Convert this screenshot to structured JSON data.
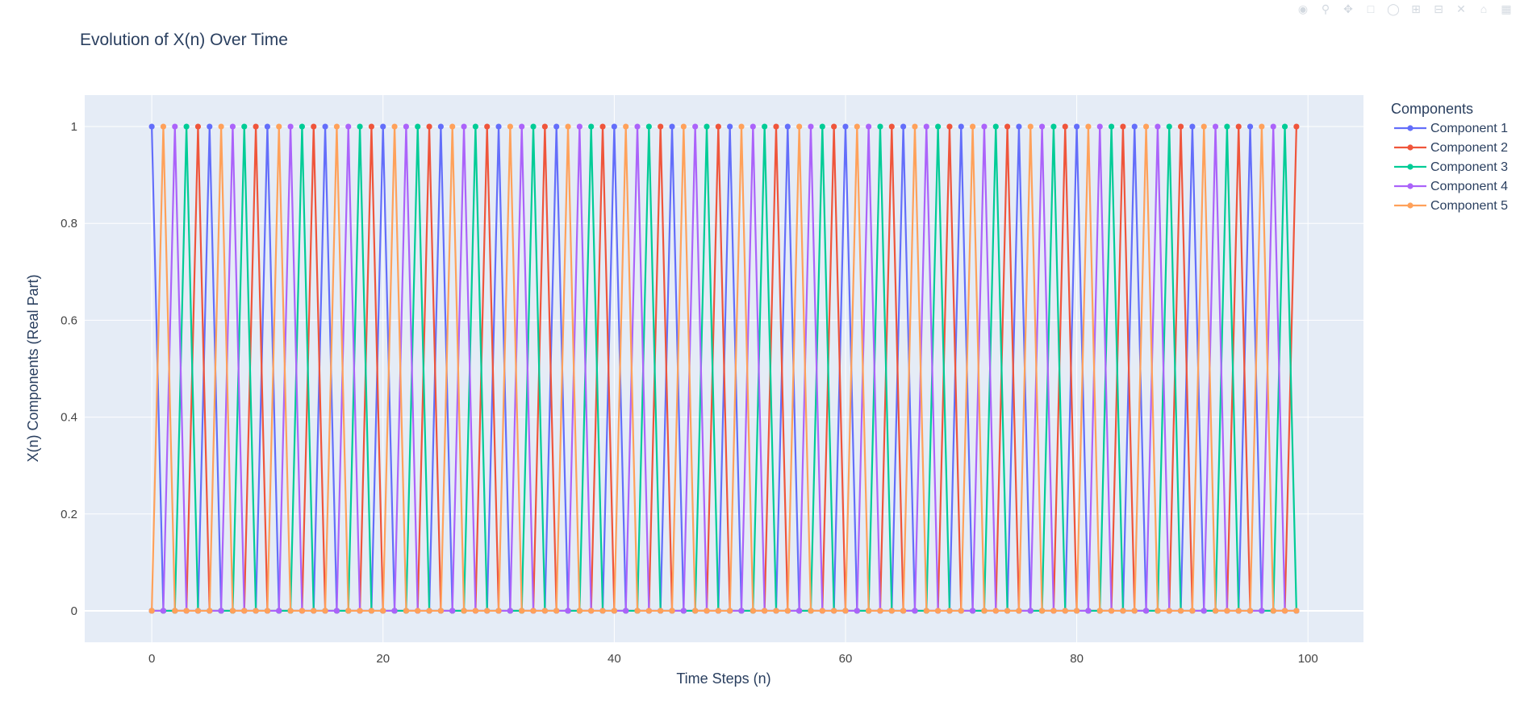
{
  "chart_data": {
    "type": "line",
    "title": "Evolution of X(n) Over Time",
    "xlabel": "Time Steps (n)",
    "ylabel": "X(n) Components (Real Part)",
    "x_range": [
      -5.8,
      104.8
    ],
    "y_range": [
      -0.065,
      1.065
    ],
    "x_ticks": [
      0,
      20,
      40,
      60,
      80,
      100
    ],
    "x_tick_labels": [
      "0",
      "20",
      "40",
      "60",
      "80",
      "100"
    ],
    "y_ticks": [
      0,
      0.2,
      0.4,
      0.6,
      0.8,
      1
    ],
    "y_tick_labels": [
      "0",
      "0.2",
      "0.4",
      "0.6",
      "0.8",
      "1"
    ],
    "grid": true,
    "legend_title": "Components",
    "legend_position": "top-right outside",
    "x": [
      0,
      1,
      2,
      3,
      4,
      5,
      6,
      7,
      8,
      9,
      10,
      11,
      12,
      13,
      14,
      15,
      16,
      17,
      18,
      19,
      20,
      21,
      22,
      23,
      24,
      25,
      26,
      27,
      28,
      29,
      30,
      31,
      32,
      33,
      34,
      35,
      36,
      37,
      38,
      39,
      40,
      41,
      42,
      43,
      44,
      45,
      46,
      47,
      48,
      49,
      50,
      51,
      52,
      53,
      54,
      55,
      56,
      57,
      58,
      59,
      60,
      61,
      62,
      63,
      64,
      65,
      66,
      67,
      68,
      69,
      70,
      71,
      72,
      73,
      74,
      75,
      76,
      77,
      78,
      79,
      80,
      81,
      82,
      83,
      84,
      85,
      86,
      87,
      88,
      89,
      90,
      91,
      92,
      93,
      94,
      95,
      96,
      97,
      98,
      99
    ],
    "series": [
      {
        "name": "Component 1",
        "color": "#636efa",
        "values": [
          1,
          0,
          0,
          0,
          0,
          1,
          0,
          0,
          0,
          0,
          1,
          0,
          0,
          0,
          0,
          1,
          0,
          0,
          0,
          0,
          1,
          0,
          0,
          0,
          0,
          1,
          0,
          0,
          0,
          0,
          1,
          0,
          0,
          0,
          0,
          1,
          0,
          0,
          0,
          0,
          1,
          0,
          0,
          0,
          0,
          1,
          0,
          0,
          0,
          0,
          1,
          0,
          0,
          0,
          0,
          1,
          0,
          0,
          0,
          0,
          1,
          0,
          0,
          0,
          0,
          1,
          0,
          0,
          0,
          0,
          1,
          0,
          0,
          0,
          0,
          1,
          0,
          0,
          0,
          0,
          1,
          0,
          0,
          0,
          0,
          1,
          0,
          0,
          0,
          0,
          1,
          0,
          0,
          0,
          0,
          1,
          0,
          0,
          0,
          0
        ]
      },
      {
        "name": "Component 2",
        "color": "#EF553B",
        "values": [
          0,
          0,
          0,
          0,
          1,
          0,
          0,
          0,
          0,
          1,
          0,
          0,
          0,
          0,
          1,
          0,
          0,
          0,
          0,
          1,
          0,
          0,
          0,
          0,
          1,
          0,
          0,
          0,
          0,
          1,
          0,
          0,
          0,
          0,
          1,
          0,
          0,
          0,
          0,
          1,
          0,
          0,
          0,
          0,
          1,
          0,
          0,
          0,
          0,
          1,
          0,
          0,
          0,
          0,
          1,
          0,
          0,
          0,
          0,
          1,
          0,
          0,
          0,
          0,
          1,
          0,
          0,
          0,
          0,
          1,
          0,
          0,
          0,
          0,
          1,
          0,
          0,
          0,
          0,
          1,
          0,
          0,
          0,
          0,
          1,
          0,
          0,
          0,
          0,
          1,
          0,
          0,
          0,
          0,
          1,
          0,
          0,
          0,
          0,
          1
        ]
      },
      {
        "name": "Component 3",
        "color": "#00cc96",
        "values": [
          0,
          0,
          0,
          1,
          0,
          0,
          0,
          0,
          1,
          0,
          0,
          0,
          0,
          1,
          0,
          0,
          0,
          0,
          1,
          0,
          0,
          0,
          0,
          1,
          0,
          0,
          0,
          0,
          1,
          0,
          0,
          0,
          0,
          1,
          0,
          0,
          0,
          0,
          1,
          0,
          0,
          0,
          0,
          1,
          0,
          0,
          0,
          0,
          1,
          0,
          0,
          0,
          0,
          1,
          0,
          0,
          0,
          0,
          1,
          0,
          0,
          0,
          0,
          1,
          0,
          0,
          0,
          0,
          1,
          0,
          0,
          0,
          0,
          1,
          0,
          0,
          0,
          0,
          1,
          0,
          0,
          0,
          0,
          1,
          0,
          0,
          0,
          0,
          1,
          0,
          0,
          0,
          0,
          1,
          0,
          0,
          0,
          0,
          1,
          0
        ]
      },
      {
        "name": "Component 4",
        "color": "#ab63fa",
        "values": [
          0,
          0,
          1,
          0,
          0,
          0,
          0,
          1,
          0,
          0,
          0,
          0,
          1,
          0,
          0,
          0,
          0,
          1,
          0,
          0,
          0,
          0,
          1,
          0,
          0,
          0,
          0,
          1,
          0,
          0,
          0,
          0,
          1,
          0,
          0,
          0,
          0,
          1,
          0,
          0,
          0,
          0,
          1,
          0,
          0,
          0,
          0,
          1,
          0,
          0,
          0,
          0,
          1,
          0,
          0,
          0,
          0,
          1,
          0,
          0,
          0,
          0,
          1,
          0,
          0,
          0,
          0,
          1,
          0,
          0,
          0,
          0,
          1,
          0,
          0,
          0,
          0,
          1,
          0,
          0,
          0,
          0,
          1,
          0,
          0,
          0,
          0,
          1,
          0,
          0,
          0,
          0,
          1,
          0,
          0,
          0,
          0,
          1,
          0,
          0
        ]
      },
      {
        "name": "Component 5",
        "color": "#FFA15A",
        "values": [
          0,
          1,
          0,
          0,
          0,
          0,
          1,
          0,
          0,
          0,
          0,
          1,
          0,
          0,
          0,
          0,
          1,
          0,
          0,
          0,
          0,
          1,
          0,
          0,
          0,
          0,
          1,
          0,
          0,
          0,
          0,
          1,
          0,
          0,
          0,
          0,
          1,
          0,
          0,
          0,
          0,
          1,
          0,
          0,
          0,
          0,
          1,
          0,
          0,
          0,
          0,
          1,
          0,
          0,
          0,
          0,
          1,
          0,
          0,
          0,
          0,
          1,
          0,
          0,
          0,
          0,
          1,
          0,
          0,
          0,
          0,
          1,
          0,
          0,
          0,
          0,
          1,
          0,
          0,
          0,
          0,
          1,
          0,
          0,
          0,
          0,
          1,
          0,
          0,
          0,
          0,
          1,
          0,
          0,
          0,
          0,
          1,
          0,
          0,
          0
        ]
      }
    ]
  },
  "colors": {
    "plot_bg": "#e5ecf6",
    "grid": "#ffffff",
    "text": "#2a3f5f",
    "tick_text": "#444444"
  },
  "modebar": [
    "camera-icon",
    "zoom-icon",
    "pan-icon",
    "box-select-icon",
    "lasso-icon",
    "zoom-in-icon",
    "zoom-out-icon",
    "autoscale-icon",
    "reset-axes-icon",
    "plotly-logo-icon"
  ]
}
